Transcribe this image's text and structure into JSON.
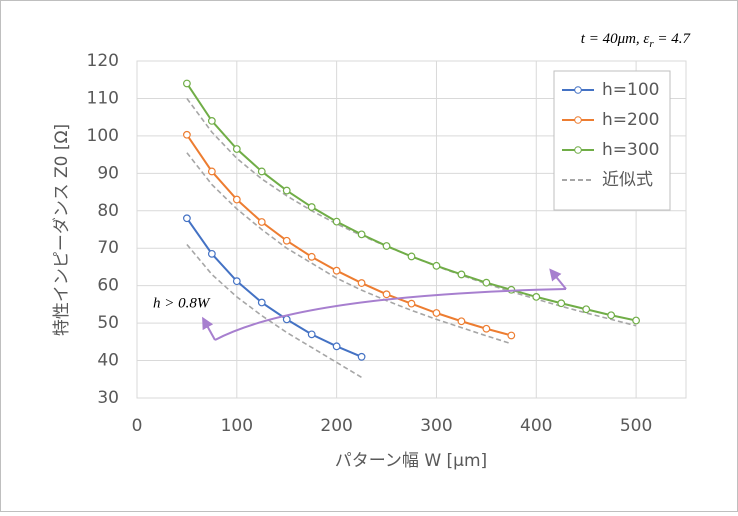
{
  "chart_data": {
    "type": "line",
    "conditions": [
      "t = 40μm, ε",
      "r",
      " = 4.7"
    ],
    "annotation": "h > 0.8W",
    "x_label": "パターン幅 W [μm]",
    "y_label": "特性インピーダンス Z0 [Ω]",
    "xlim": [
      0,
      550
    ],
    "xticks": [
      0,
      100,
      200,
      300,
      400,
      500
    ],
    "ylim": [
      30,
      120
    ],
    "yticks": [
      30,
      40,
      50,
      60,
      70,
      80,
      90,
      100,
      110,
      120
    ],
    "grid": true,
    "legend": "upper right",
    "series": [
      {
        "name": "h=100",
        "color": "#4472c4",
        "x": [
          50,
          75,
          100,
          125,
          150,
          175,
          200,
          225
        ],
        "values": [
          78,
          68.5,
          61.2,
          55.5,
          51,
          47,
          43.8,
          41
        ]
      },
      {
        "name": "h=200",
        "color": "#ed7d31",
        "x": [
          50,
          75,
          100,
          125,
          150,
          175,
          200,
          225,
          250,
          275,
          300,
          325,
          350,
          375
        ],
        "values": [
          100.3,
          90.5,
          83,
          77,
          72,
          67.7,
          64,
          60.7,
          57.7,
          55.2,
          52.7,
          50.5,
          48.5,
          46.7
        ]
      },
      {
        "name": "h=300",
        "color": "#70ad47",
        "x": [
          50,
          75,
          100,
          125,
          150,
          175,
          200,
          225,
          250,
          275,
          300,
          325,
          350,
          375,
          400,
          425,
          450,
          475,
          500
        ],
        "values": [
          114,
          104,
          96.5,
          90.5,
          85.4,
          81,
          77.1,
          73.7,
          70.6,
          67.8,
          65.3,
          63,
          60.8,
          58.9,
          57,
          55.3,
          53.7,
          52.1,
          50.7
        ]
      }
    ],
    "fit": {
      "name": "近似式",
      "color": "#a6a6a6",
      "curves": [
        {
          "x": [
            50,
            75,
            100,
            125,
            150,
            175,
            200,
            225
          ],
          "values": [
            71,
            63,
            57,
            52,
            47.5,
            43.5,
            39.5,
            35.5
          ]
        },
        {
          "x": [
            50,
            75,
            100,
            125,
            150,
            175,
            200,
            225,
            250,
            275,
            300,
            325,
            350,
            375
          ],
          "values": [
            95.5,
            87,
            80.5,
            75,
            70,
            66,
            62,
            58.8,
            56,
            53.4,
            51,
            48.8,
            46.6,
            44.5
          ]
        },
        {
          "x": [
            50,
            75,
            100,
            125,
            150,
            175,
            200,
            225,
            250,
            275,
            300,
            325,
            350,
            375,
            400,
            425,
            450,
            475,
            500
          ],
          "values": [
            110,
            101,
            94,
            88.5,
            84,
            80,
            76.5,
            73.4,
            70.5,
            67.8,
            65.2,
            62.8,
            60.5,
            58.4,
            56.4,
            54.5,
            52.7,
            51,
            49.3
          ]
        }
      ]
    }
  }
}
